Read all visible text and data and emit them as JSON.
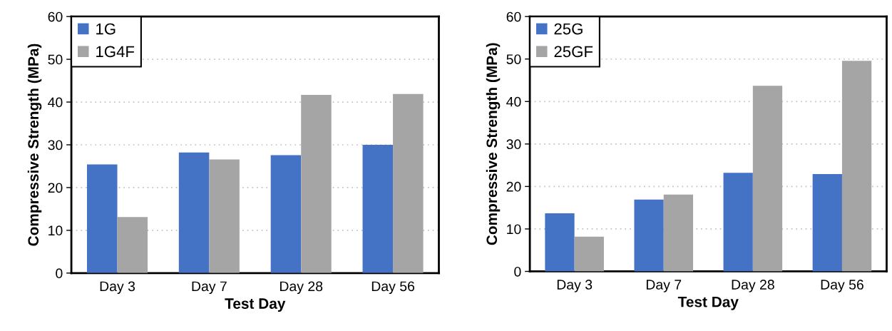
{
  "chart_data": [
    {
      "type": "bar",
      "xlabel": "Test Day",
      "ylabel": "Compressive Strength (MPa)",
      "categories": [
        "Day 3",
        "Day 7",
        "Day 28",
        "Day 56"
      ],
      "series": [
        {
          "name": "1G",
          "color": "#4472c4",
          "values": [
            25.4,
            28.2,
            27.6,
            30.0
          ]
        },
        {
          "name": "1G4F",
          "color": "#a5a5a5",
          "values": [
            13.1,
            26.6,
            41.7,
            41.9
          ]
        }
      ],
      "ylim": [
        0,
        60
      ],
      "yticks": [
        0,
        10,
        20,
        30,
        40,
        50,
        60
      ],
      "grid": "y",
      "legend": "top left"
    },
    {
      "type": "bar",
      "xlabel": "Test Day",
      "ylabel": "Compressive Strength (MPa)",
      "categories": [
        "Day 3",
        "Day 7",
        "Day 28",
        "Day 56"
      ],
      "series": [
        {
          "name": "25G",
          "color": "#4472c4",
          "values": [
            13.7,
            16.9,
            23.2,
            22.9
          ]
        },
        {
          "name": "25GF",
          "color": "#a5a5a5",
          "values": [
            8.2,
            18.1,
            43.7,
            49.6
          ]
        }
      ],
      "ylim": [
        0,
        60
      ],
      "yticks": [
        0,
        10,
        20,
        30,
        40,
        50,
        60
      ],
      "grid": "y",
      "legend": "top left"
    }
  ]
}
